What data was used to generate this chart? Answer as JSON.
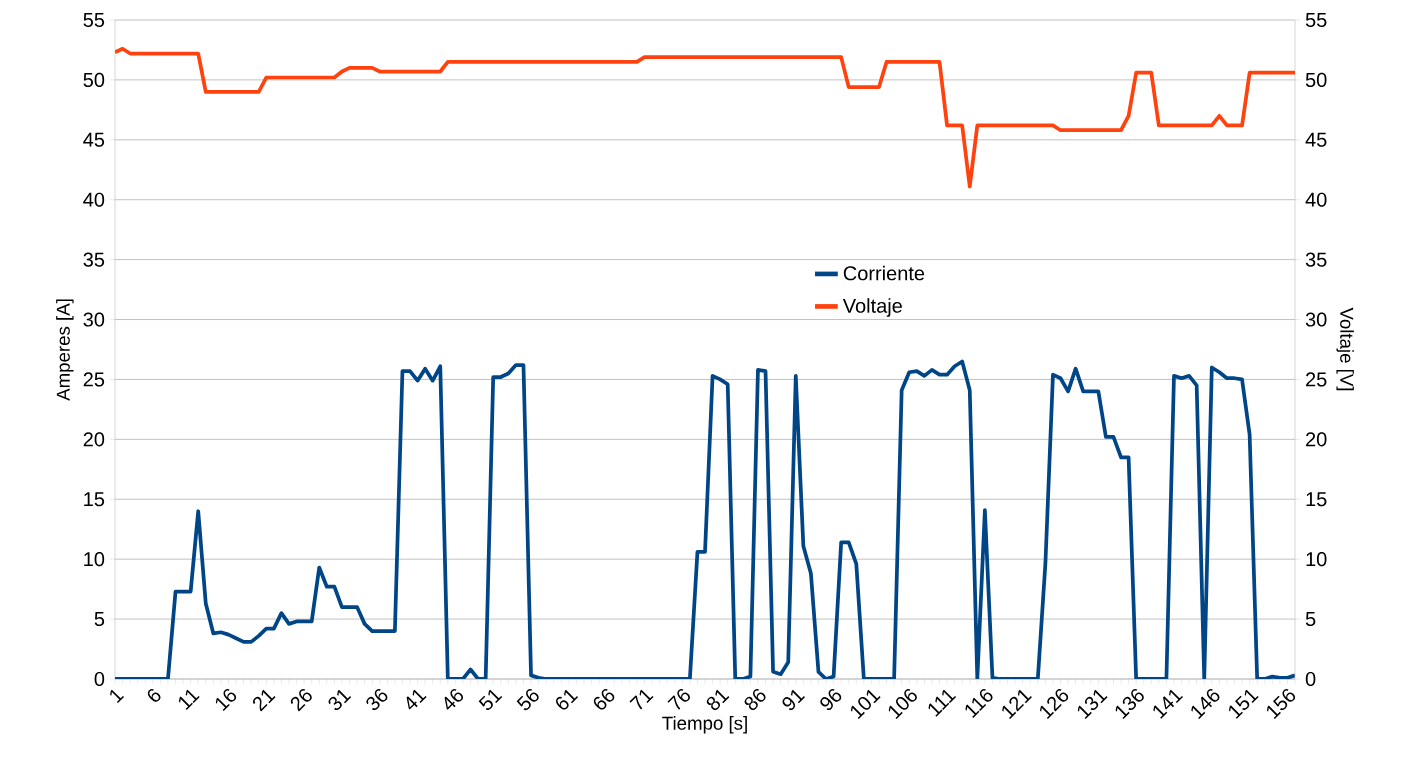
{
  "chart_data": {
    "type": "line",
    "xlabel": "Tiempo [s]",
    "ylabel": "Amperes [A]",
    "y2label": "Voltaje [V]",
    "categories": [
      "1",
      null,
      null,
      null,
      null,
      "6",
      null,
      null,
      null,
      null,
      "11",
      null,
      null,
      null,
      null,
      "16",
      null,
      null,
      null,
      null,
      "21",
      null,
      null,
      null,
      null,
      "26",
      null,
      null,
      null,
      null,
      "31",
      null,
      null,
      null,
      null,
      "36",
      null,
      null,
      null,
      null,
      "41",
      null,
      null,
      null,
      null,
      "46",
      null,
      null,
      null,
      null,
      "51",
      null,
      null,
      null,
      null,
      "56",
      null,
      null,
      null,
      null,
      "61",
      null,
      null,
      null,
      null,
      "66",
      null,
      null,
      null,
      null,
      "71",
      null,
      null,
      null,
      null,
      "76",
      null,
      null,
      null,
      null,
      "81",
      null,
      null,
      null,
      null,
      "86",
      null,
      null,
      null,
      null,
      "91",
      null,
      null,
      null,
      null,
      "96",
      null,
      null,
      null,
      null,
      "101",
      null,
      null,
      null,
      null,
      "106",
      null,
      null,
      null,
      null,
      "111",
      null,
      null,
      null,
      null,
      "116",
      null,
      null,
      null,
      null,
      "121",
      null,
      null,
      null,
      null,
      "126",
      null,
      null,
      null,
      null,
      "131",
      null,
      null,
      null,
      null,
      "136",
      null,
      null,
      null,
      null,
      "141",
      null,
      null,
      null,
      null,
      "146",
      null,
      null,
      null,
      null,
      "151",
      null,
      null,
      null,
      null,
      "156",
      null
    ],
    "series": [
      {
        "name": "Corriente",
        "color": "#004586",
        "values": [
          0,
          0,
          0,
          0,
          0,
          0,
          0,
          0,
          7.3,
          7.3,
          7.3,
          14.0,
          6.3,
          3.8,
          3.9,
          3.7,
          3.4,
          3.1,
          3.1,
          3.6,
          4.2,
          4.2,
          5.5,
          4.6,
          4.8,
          4.8,
          4.8,
          9.3,
          7.7,
          7.7,
          6.0,
          6.0,
          6.0,
          4.6,
          4.0,
          4.0,
          4.0,
          4.0,
          25.7,
          25.7,
          24.9,
          25.9,
          24.9,
          26.1,
          0,
          0,
          0,
          0.8,
          0,
          0,
          25.2,
          25.2,
          25.5,
          26.2,
          26.2,
          0.3,
          0.1,
          0,
          0,
          0,
          0,
          0,
          0,
          0,
          0,
          0,
          0,
          0,
          0,
          0,
          0,
          0,
          0,
          0,
          0,
          0,
          0,
          10.6,
          10.6,
          25.3,
          25.0,
          24.6,
          0,
          0,
          0.2,
          25.8,
          25.7,
          0.6,
          0.4,
          1.4,
          25.3,
          11.1,
          8.8,
          0.6,
          0,
          0.2,
          11.4,
          11.4,
          9.6,
          0,
          0,
          0,
          0,
          0,
          24.1,
          25.6,
          25.7,
          25.3,
          25.8,
          25.4,
          25.4,
          26.1,
          26.5,
          24.1,
          0,
          14.1,
          0.1,
          0,
          0,
          0,
          0,
          0,
          0,
          9.6,
          25.4,
          25.1,
          24.0,
          25.9,
          24.0,
          24.0,
          24.0,
          20.2,
          20.2,
          18.5,
          18.5,
          0,
          0,
          0,
          0,
          0,
          25.3,
          25.1,
          25.3,
          24.5,
          0,
          26.0,
          25.6,
          25.1,
          25.1,
          25.0,
          20.4,
          0,
          0,
          0.2,
          0.1,
          0.1,
          0.3
        ]
      },
      {
        "name": "Voltaje",
        "color": "#ff420e",
        "axis": "y2",
        "values": [
          52.3,
          52.6,
          52.2,
          52.2,
          52.2,
          52.2,
          52.2,
          52.2,
          52.2,
          52.2,
          52.2,
          52.2,
          49.0,
          49.0,
          49.0,
          49.0,
          49.0,
          49.0,
          49.0,
          49.0,
          50.2,
          50.2,
          50.2,
          50.2,
          50.2,
          50.2,
          50.2,
          50.2,
          50.2,
          50.2,
          50.7,
          51.0,
          51.0,
          51.0,
          51.0,
          50.7,
          50.7,
          50.7,
          50.7,
          50.7,
          50.7,
          50.7,
          50.7,
          50.7,
          51.5,
          51.5,
          51.5,
          51.5,
          51.5,
          51.5,
          51.5,
          51.5,
          51.5,
          51.5,
          51.5,
          51.5,
          51.5,
          51.5,
          51.5,
          51.5,
          51.5,
          51.5,
          51.5,
          51.5,
          51.5,
          51.5,
          51.5,
          51.5,
          51.5,
          51.5,
          51.9,
          51.9,
          51.9,
          51.9,
          51.9,
          51.9,
          51.9,
          51.9,
          51.9,
          51.9,
          51.9,
          51.9,
          51.9,
          51.9,
          51.9,
          51.9,
          51.9,
          51.9,
          51.9,
          51.9,
          51.9,
          51.9,
          51.9,
          51.9,
          51.9,
          51.9,
          51.9,
          49.4,
          49.4,
          49.4,
          49.4,
          49.4,
          51.5,
          51.5,
          51.5,
          51.5,
          51.5,
          51.5,
          51.5,
          51.5,
          46.2,
          46.2,
          46.2,
          41.1,
          46.2,
          46.2,
          46.2,
          46.2,
          46.2,
          46.2,
          46.2,
          46.2,
          46.2,
          46.2,
          46.2,
          45.8,
          45.8,
          45.8,
          45.8,
          45.8,
          45.8,
          45.8,
          45.8,
          45.8,
          47.0,
          50.6,
          50.6,
          50.6,
          46.2,
          46.2,
          46.2,
          46.2,
          46.2,
          46.2,
          46.2,
          46.2,
          47.0,
          46.2,
          46.2,
          46.2,
          50.6,
          50.6,
          50.6,
          50.6,
          50.6,
          50.6,
          50.6
        ]
      }
    ],
    "ylim": [
      0,
      55
    ],
    "yticks": [
      0,
      5,
      10,
      15,
      20,
      25,
      30,
      35,
      40,
      45,
      50,
      55
    ],
    "y2lim": [
      0,
      55
    ],
    "y2ticks": [
      0,
      5,
      10,
      15,
      20,
      25,
      30,
      35,
      40,
      45,
      50,
      55
    ],
    "grid": "y",
    "legend": "center"
  }
}
